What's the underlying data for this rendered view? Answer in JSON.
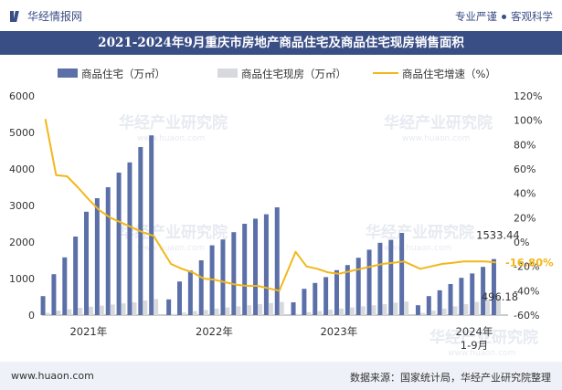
{
  "header": {
    "brand": "华经情报网",
    "slogan_left": "专业严谨",
    "slogan_right": "客观科学"
  },
  "chart_data": {
    "type": "bar+line",
    "title": "2021-2024年9月重庆市房地产商品住宅及商品住宅现房销售面积",
    "legend": [
      "商品住宅（万㎡）",
      "商品住宅现房（万㎡）",
      "商品住宅增速（%）"
    ],
    "colors": {
      "bar1": "#5b6fa8",
      "bar2": "#d7d9dd",
      "line": "#f2b71a",
      "title_bg": "#3a4e86"
    },
    "ylim_left": [
      0,
      6000
    ],
    "yticks_left": [
      "0",
      "1000",
      "2000",
      "3000",
      "4000",
      "5000",
      "6000"
    ],
    "ylim_right": [
      -60,
      120
    ],
    "yticks_right": [
      "-60%",
      "-40%",
      "-20%",
      "0%",
      "20%",
      "40%",
      "60%",
      "80%",
      "100%",
      "120%"
    ],
    "year_labels": [
      "2021年",
      "2022年",
      "2023年",
      "2024年",
      "1-9月"
    ],
    "series": [
      {
        "name": "商品住宅",
        "values": [
          520,
          1120,
          1580,
          2150,
          2830,
          3200,
          3500,
          3900,
          4180,
          4600,
          4920,
          430,
          920,
          1220,
          1500,
          1910,
          2070,
          2270,
          2500,
          2640,
          2760,
          2950,
          350,
          720,
          880,
          1040,
          1230,
          1370,
          1570,
          1790,
          1980,
          2060,
          2250,
          270,
          520,
          680,
          850,
          1020,
          1140,
          1320,
          1533.44
        ]
      },
      {
        "name": "商品住宅现房",
        "values": [
          60,
          120,
          160,
          200,
          230,
          260,
          290,
          320,
          350,
          400,
          440,
          30,
          70,
          110,
          140,
          180,
          210,
          240,
          270,
          300,
          330,
          360,
          30,
          80,
          110,
          150,
          180,
          210,
          240,
          270,
          300,
          340,
          370,
          60,
          120,
          180,
          240,
          300,
          360,
          420,
          496.18
        ]
      },
      {
        "name": "商品住宅增速",
        "values": [
          101,
          55,
          54,
          45,
          35,
          26,
          20,
          16,
          12,
          8,
          5,
          -18,
          -22,
          -25,
          -30,
          -31,
          -33,
          -35,
          -36,
          -36,
          -38,
          -40,
          -8,
          -20,
          -22,
          -25,
          -26,
          -24,
          -22,
          -20,
          -18,
          -17,
          -16,
          -22,
          -20,
          -18,
          -17,
          -16,
          -16,
          -16,
          -16.8
        ]
      }
    ],
    "annotations": {
      "bar1_last": "1533.44",
      "bar2_last": "496.18",
      "line_last": "-16.80%"
    },
    "watermark": "华经产业研究院",
    "watermark_url": "www.huaon.com"
  },
  "footer": {
    "website": "www.huaon.com",
    "source": "数据来源：国家统计局，华经产业研究院整理"
  }
}
